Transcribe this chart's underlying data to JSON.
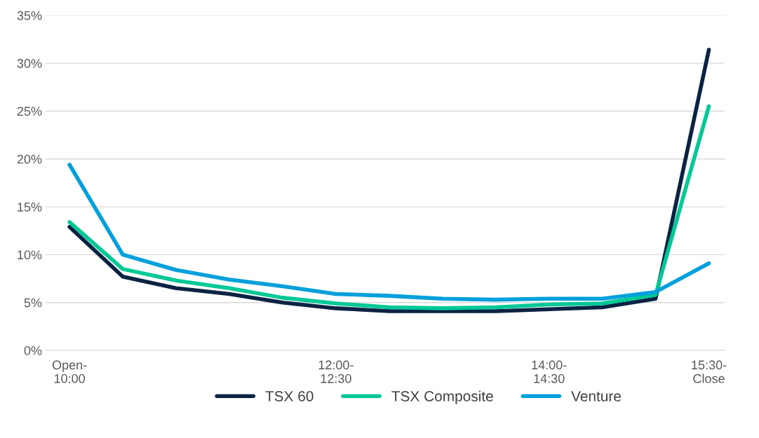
{
  "chart_data": {
    "type": "line",
    "categories": [
      "Open-\n10:00",
      null,
      null,
      null,
      null,
      "12:00-\n12:30",
      null,
      null,
      null,
      "14:00-\n14:30",
      null,
      null,
      "15:30-\nClose"
    ],
    "series": [
      {
        "name": "TSX 60",
        "color": "#0b2343",
        "values": [
          12.9,
          7.7,
          6.5,
          5.9,
          5.0,
          4.4,
          4.1,
          4.1,
          4.1,
          4.3,
          4.5,
          5.4,
          31.4
        ]
      },
      {
        "name": "TSX Composite",
        "color": "#00c896",
        "values": [
          13.4,
          8.5,
          7.3,
          6.5,
          5.5,
          4.9,
          4.5,
          4.4,
          4.5,
          4.8,
          4.9,
          5.8,
          25.5
        ]
      },
      {
        "name": "Venture",
        "color": "#00a0dc",
        "values": [
          19.4,
          10.0,
          8.4,
          7.4,
          6.7,
          5.9,
          5.7,
          5.4,
          5.3,
          5.4,
          5.4,
          6.1,
          9.1
        ]
      }
    ],
    "ylim": [
      0,
      35
    ],
    "yticks": [
      {
        "value": 0,
        "label": "0%"
      },
      {
        "value": 5,
        "label": "5%"
      },
      {
        "value": 10,
        "label": "10%"
      },
      {
        "value": 15,
        "label": "15%"
      },
      {
        "value": 20,
        "label": "20%"
      },
      {
        "value": 25,
        "label": "25%"
      },
      {
        "value": 30,
        "label": "30%"
      },
      {
        "value": 35,
        "label": "35%"
      }
    ],
    "grid": "y",
    "legend": "bottom",
    "line_style": "solid",
    "marker": "none"
  }
}
